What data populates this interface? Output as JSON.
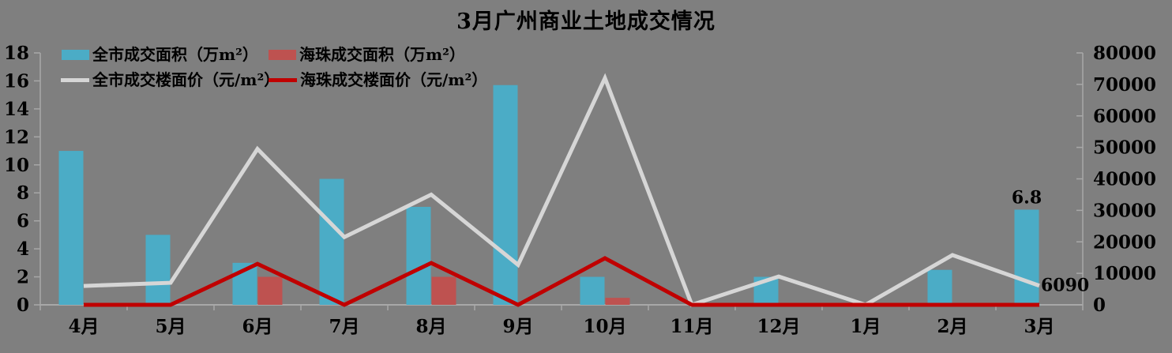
{
  "colors": {
    "background": "#7F7F7F",
    "axis": "#A8A8A8",
    "text": "#000000",
    "citywide_area_bar": "#4BACC6",
    "haizhu_area_bar": "#BE5250",
    "citywide_price_line": "#D6D6D6",
    "haizhu_price_line": "#C00000"
  },
  "chart_data": {
    "type": "bar+line combo, dual axis",
    "title": "3月广州商业土地成交情况",
    "categories": [
      "4月",
      "5月",
      "6月",
      "7月",
      "8月",
      "9月",
      "10月",
      "11月",
      "12月",
      "1月",
      "2月",
      "3月"
    ],
    "series": [
      {
        "key": "citywide-area",
        "name": "全市成交面积（万m²）",
        "type": "bar",
        "axis": "left",
        "color": "#4BACC6",
        "values": [
          11,
          5,
          3,
          9,
          7,
          15.7,
          2,
          0,
          2,
          0,
          2.5,
          6.8
        ]
      },
      {
        "key": "haizhu-area",
        "name": "海珠成交面积（万m²）",
        "type": "bar",
        "axis": "left",
        "color": "#BE5250",
        "values": [
          0,
          0,
          2,
          0,
          2,
          0,
          0.5,
          0,
          0,
          0,
          0,
          0
        ]
      },
      {
        "key": "citywide-price",
        "name": "全市成交楼面价（元/m²）",
        "type": "line",
        "axis": "right",
        "color": "#D6D6D6",
        "values": [
          6000,
          7000,
          49500,
          21500,
          35000,
          12700,
          72000,
          0,
          9000,
          0,
          15800,
          6090
        ]
      },
      {
        "key": "haizhu-price",
        "name": "海珠成交楼面价（元/m²）",
        "type": "line",
        "axis": "right",
        "color": "#C00000",
        "values": [
          0,
          0,
          13000,
          0,
          13300,
          0,
          14800,
          0,
          0,
          0,
          0,
          0
        ]
      }
    ],
    "left_axis": {
      "min": 0,
      "max": 18,
      "step": 2,
      "tick_labels": [
        "0",
        "2",
        "4",
        "6",
        "8",
        "10",
        "12",
        "14",
        "16",
        "18"
      ]
    },
    "right_axis": {
      "min": 0,
      "max": 80000,
      "step": 10000,
      "tick_labels": [
        "0",
        "10000",
        "20000",
        "30000",
        "40000",
        "50000",
        "60000",
        "70000",
        "80000"
      ]
    },
    "data_labels": [
      {
        "series_index": 0,
        "category_index": 11,
        "text": "6.8"
      },
      {
        "series_index": 2,
        "category_index": 11,
        "text": "6090"
      }
    ],
    "legend_position": "top-left, two rows",
    "grid": false
  }
}
